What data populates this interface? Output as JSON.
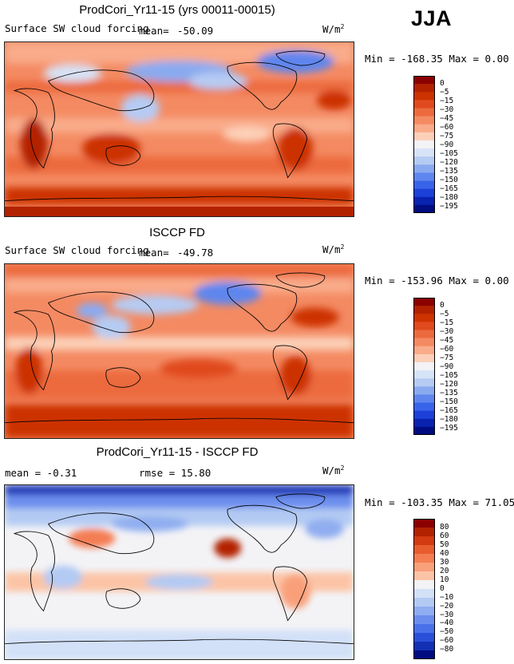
{
  "season": "JJA",
  "colors": {
    "surface_levels": [
      "#8b0000",
      "#b22200",
      "#cc3300",
      "#e04a1e",
      "#ec6a3e",
      "#f48a62",
      "#f9ab8a",
      "#fcd0b8",
      "#f3f3f6",
      "#d7e3f7",
      "#b6cbf3",
      "#8aaaf0",
      "#5f86ee",
      "#3864ea",
      "#1c40d8",
      "#0a22b0",
      "#000c80"
    ],
    "diff_levels": [
      "#8b0000",
      "#b22200",
      "#d23a10",
      "#e85c2e",
      "#f47d52",
      "#f9a07a",
      "#fcc4a6",
      "#f3f3f6",
      "#d2e0f8",
      "#b3caf3",
      "#8fadf0",
      "#6b8eee",
      "#4a70ea",
      "#2a4fd8",
      "#1230b4",
      "#000c80"
    ]
  },
  "panels": [
    {
      "title": "ProdCori_Yr11-15 (yrs 00011-00015)",
      "subtitle": "Surface SW cloud forcing",
      "mean_label": "mean=",
      "mean_value": "-50.09",
      "units": "W/m",
      "units_sup": "2",
      "stats": "Min = -168.35 Max =    0.00",
      "colorbar_ticks": [
        "0",
        "−5",
        "−15",
        "−30",
        "−45",
        "−60",
        "−75",
        "−90",
        "−105",
        "−120",
        "−135",
        "−150",
        "−165",
        "−180",
        "−195"
      ]
    },
    {
      "title": "ISCCP FD",
      "subtitle": "Surface SW cloud forcing",
      "mean_label": "mean=",
      "mean_value": "-49.78",
      "units": "W/m",
      "units_sup": "2",
      "stats": "Min = -153.96 Max =    0.00",
      "colorbar_ticks": [
        "0",
        "−5",
        "−15",
        "−30",
        "−45",
        "−60",
        "−75",
        "−90",
        "−105",
        "−120",
        "−135",
        "−150",
        "−165",
        "−180",
        "−195"
      ]
    },
    {
      "title": "ProdCori_Yr11-15 - ISCCP FD",
      "mean_text": "mean =  -0.31",
      "rmse_text": "rmse =  15.80",
      "units": "W/m",
      "units_sup": "2",
      "stats": "Min = -103.35 Max =  71.05",
      "colorbar_ticks": [
        "80",
        "60",
        "50",
        "40",
        "30",
        "20",
        "10",
        "0",
        "−10",
        "−20",
        "−30",
        "−40",
        "−50",
        "−60",
        "−80"
      ]
    }
  ],
  "chart_data": {
    "type": "heatmap",
    "variable": "Surface SW cloud forcing",
    "units": "W/m^2",
    "season": "JJA",
    "maps": [
      {
        "name": "ProdCori_Yr11-15 (yrs 00011-00015)",
        "mean": -50.09,
        "min": -168.35,
        "max": 0.0
      },
      {
        "name": "ISCCP FD",
        "mean": -49.78,
        "min": -153.96,
        "max": 0.0
      },
      {
        "name": "ProdCori_Yr11-15 - ISCCP FD",
        "mean": -0.31,
        "rmse": 15.8,
        "min": -103.35,
        "max": 71.05
      }
    ],
    "surface_levels": [
      0,
      -5,
      -15,
      -30,
      -45,
      -60,
      -75,
      -90,
      -105,
      -120,
      -135,
      -150,
      -165,
      -180,
      -195
    ],
    "diff_levels": [
      80,
      60,
      50,
      40,
      30,
      20,
      10,
      0,
      -10,
      -20,
      -30,
      -40,
      -50,
      -60,
      -80
    ]
  }
}
